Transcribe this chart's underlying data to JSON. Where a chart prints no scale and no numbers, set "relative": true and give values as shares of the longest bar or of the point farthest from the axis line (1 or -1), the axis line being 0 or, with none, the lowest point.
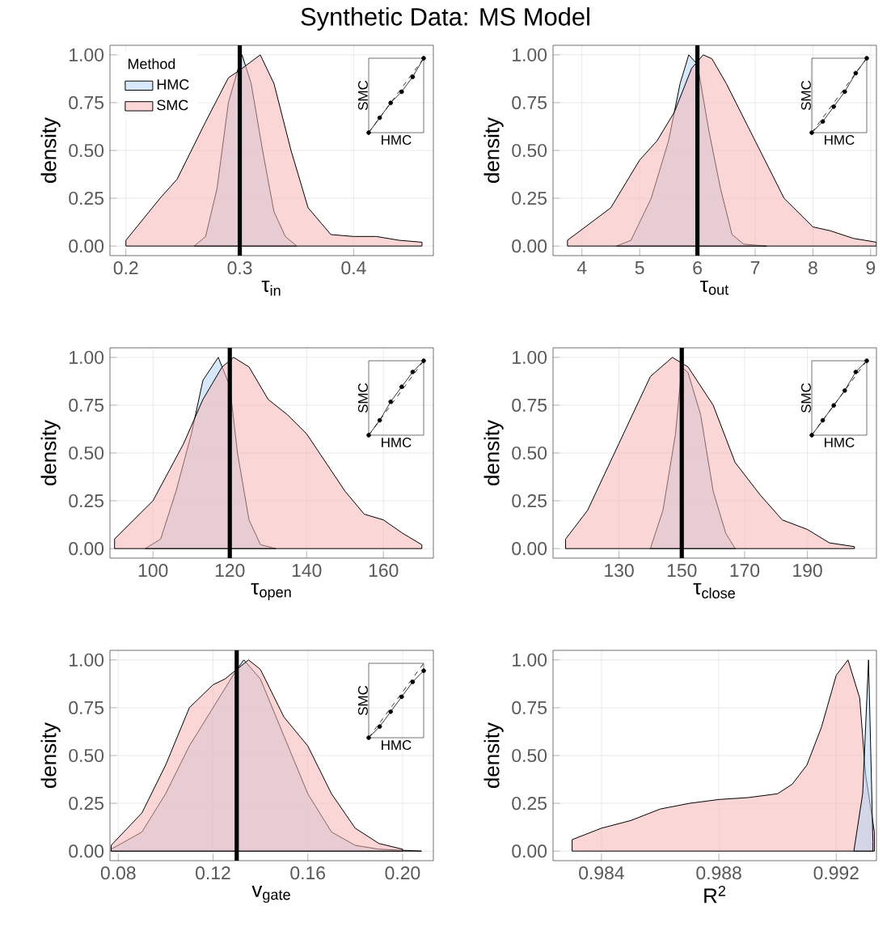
{
  "chart_data": [
    {
      "type": "area",
      "title": "Synthetic Data: MS Model",
      "xlabel": "τ$_{in}$",
      "ylabel": "density",
      "legend_title": "Method",
      "legend": "top left",
      "grid": true,
      "xlim": [
        0.186,
        0.47
      ],
      "xticks": [
        0.2,
        0.3,
        0.4
      ],
      "ylim": [
        -0.05,
        1.05
      ],
      "yticks": [
        {
          "value": 0,
          "label": "0.00"
        },
        {
          "value": 0.25,
          "label": "0.25"
        },
        {
          "value": 0.5,
          "label": "0.50"
        },
        {
          "value": 0.75,
          "label": "0.75"
        },
        {
          "value": 1,
          "label": "1.00"
        }
      ],
      "ref_lines": [
        {
          "axis": "x",
          "value": 0.3,
          "color": "#000000"
        }
      ],
      "series": [
        {
          "name": "HMC",
          "color": "#b4d6f6",
          "x": [
            0.26,
            0.27,
            0.28,
            0.29,
            0.302,
            0.31,
            0.32,
            0.33,
            0.34,
            0.35
          ],
          "values": [
            0,
            0.05,
            0.3,
            0.75,
            1.0,
            0.85,
            0.5,
            0.18,
            0.05,
            0
          ]
        },
        {
          "name": "SMC",
          "color": "#f8b4b4",
          "x": [
            0.2,
            0.23,
            0.245,
            0.27,
            0.29,
            0.3,
            0.318,
            0.33,
            0.345,
            0.36,
            0.38,
            0.4,
            0.42,
            0.44,
            0.46
          ],
          "values": [
            0.03,
            0.25,
            0.35,
            0.65,
            0.88,
            0.92,
            1.0,
            0.85,
            0.5,
            0.2,
            0.06,
            0.05,
            0.05,
            0.03,
            0.02
          ]
        }
      ]
    },
    {
      "type": "line",
      "relative": true,
      "xlabel": "HMC",
      "ylabel": "SMC",
      "categories": [
        null,
        null,
        null,
        null,
        null,
        null
      ],
      "series": [
        {
          "color": "#000000",
          "marker": "circle",
          "values": [
            0.0,
            0.2,
            0.4,
            0.55,
            0.75,
            1.0
          ]
        },
        {
          "color": "#000000",
          "line_style": "dashed",
          "values": [
            0.0,
            0.2,
            0.4,
            0.6,
            0.8,
            1.0
          ]
        }
      ]
    },
    {
      "type": "area",
      "xlabel": "τ$_{out}$",
      "ylabel": "density",
      "grid": true,
      "xlim": [
        3.5,
        9.1
      ],
      "xticks": [
        4,
        5,
        6,
        7,
        8,
        9
      ],
      "ylim": [
        -0.05,
        1.05
      ],
      "yticks": [
        {
          "value": 0,
          "label": "0.00"
        },
        {
          "value": 0.25,
          "label": "0.25"
        },
        {
          "value": 0.5,
          "label": "0.50"
        },
        {
          "value": 0.75,
          "label": "0.75"
        },
        {
          "value": 1,
          "label": "1.00"
        }
      ],
      "ref_lines": [
        {
          "axis": "x",
          "value": 6,
          "color": "#000000"
        }
      ],
      "series": [
        {
          "color": "#b4d6f6",
          "x": [
            4.6,
            4.85,
            5.2,
            5.5,
            5.7,
            5.85,
            6.0,
            6.2,
            6.4,
            6.6,
            6.8,
            7.2
          ],
          "values": [
            0,
            0.03,
            0.25,
            0.55,
            0.85,
            1.0,
            0.95,
            0.6,
            0.3,
            0.06,
            0.01,
            0
          ]
        },
        {
          "color": "#f8b4b4",
          "x": [
            3.75,
            4.5,
            5,
            5.3,
            5.6,
            5.9,
            6.1,
            6.25,
            6.5,
            7,
            7.5,
            8,
            8.3,
            8.7,
            9.1
          ],
          "values": [
            0.03,
            0.2,
            0.45,
            0.55,
            0.7,
            0.93,
            1.0,
            0.98,
            0.85,
            0.55,
            0.25,
            0.1,
            0.08,
            0.04,
            0.02
          ]
        }
      ]
    },
    {
      "type": "line",
      "relative": true,
      "xlabel": "HMC",
      "ylabel": "SMC",
      "categories": [
        null,
        null,
        null,
        null,
        null,
        null
      ],
      "series": [
        {
          "color": "#000000",
          "marker": "circle",
          "values": [
            0.0,
            0.15,
            0.35,
            0.55,
            0.8,
            1.0
          ]
        },
        {
          "color": "#000000",
          "line_style": "dashed",
          "values": [
            0.0,
            0.2,
            0.4,
            0.6,
            0.8,
            1.0
          ]
        }
      ]
    },
    {
      "type": "area",
      "xlabel": "τ$_{open}$",
      "ylabel": "density",
      "grid": true,
      "xlim": [
        88.8,
        173
      ],
      "xticks": [
        100,
        120,
        140,
        160
      ],
      "ylim": [
        -0.05,
        1.05
      ],
      "yticks": [
        {
          "value": 0,
          "label": "0.00"
        },
        {
          "value": 0.25,
          "label": "0.25"
        },
        {
          "value": 0.5,
          "label": "0.50"
        },
        {
          "value": 0.75,
          "label": "0.75"
        },
        {
          "value": 1,
          "label": "1.00"
        }
      ],
      "ref_lines": [
        {
          "axis": "x",
          "value": 120,
          "color": "#000000"
        }
      ],
      "series": [
        {
          "color": "#b4d6f6",
          "x": [
            98,
            102,
            106,
            110,
            113,
            117,
            120,
            122,
            125,
            128,
            132
          ],
          "values": [
            0,
            0.05,
            0.3,
            0.6,
            0.88,
            1.0,
            0.85,
            0.5,
            0.15,
            0.02,
            0
          ]
        },
        {
          "color": "#f8b4b4",
          "x": [
            90,
            100,
            108,
            113,
            118,
            121,
            125,
            130,
            135,
            140,
            145,
            150,
            155,
            160,
            165,
            170
          ],
          "values": [
            0.05,
            0.25,
            0.55,
            0.78,
            0.95,
            1.0,
            0.95,
            0.78,
            0.7,
            0.6,
            0.45,
            0.3,
            0.18,
            0.15,
            0.08,
            0.02
          ]
        }
      ]
    },
    {
      "type": "line",
      "relative": true,
      "xlabel": "HMC",
      "ylabel": "SMC",
      "categories": [
        null,
        null,
        null,
        null,
        null,
        null
      ],
      "series": [
        {
          "color": "#000000",
          "marker": "circle",
          "values": [
            0.0,
            0.2,
            0.45,
            0.65,
            0.85,
            1.0
          ]
        },
        {
          "color": "#000000",
          "line_style": "dashed",
          "values": [
            0.0,
            0.2,
            0.4,
            0.6,
            0.8,
            1.0
          ]
        }
      ]
    },
    {
      "type": "area",
      "xlabel": "τ$_{close}$",
      "ylabel": "density",
      "grid": true,
      "xlim": [
        109,
        212
      ],
      "xticks": [
        130,
        150,
        170,
        190
      ],
      "ylim": [
        -0.05,
        1.05
      ],
      "yticks": [
        {
          "value": 0,
          "label": "0.00"
        },
        {
          "value": 0.25,
          "label": "0.25"
        },
        {
          "value": 0.5,
          "label": "0.50"
        },
        {
          "value": 0.75,
          "label": "0.75"
        },
        {
          "value": 1,
          "label": "1.00"
        }
      ],
      "ref_lines": [
        {
          "axis": "x",
          "value": 150,
          "color": "#000000"
        }
      ],
      "series": [
        {
          "color": "#b4d6f6",
          "x": [
            140,
            144,
            148,
            150,
            152,
            156,
            160,
            164,
            167
          ],
          "values": [
            0,
            0.2,
            0.6,
            0.95,
            0.92,
            0.7,
            0.3,
            0.08,
            0
          ]
        },
        {
          "color": "#f8b4b4",
          "x": [
            113,
            120,
            130,
            140,
            147,
            152,
            160,
            167,
            175,
            182,
            190,
            197,
            205
          ],
          "values": [
            0.05,
            0.2,
            0.55,
            0.9,
            1.0,
            0.95,
            0.75,
            0.45,
            0.28,
            0.15,
            0.1,
            0.03,
            0.01
          ]
        }
      ]
    },
    {
      "type": "line",
      "relative": true,
      "xlabel": "HMC",
      "ylabel": "SMC",
      "categories": [
        null,
        null,
        null,
        null,
        null,
        null
      ],
      "series": [
        {
          "color": "#000000",
          "marker": "circle",
          "values": [
            0.0,
            0.2,
            0.4,
            0.6,
            0.85,
            1.0
          ]
        },
        {
          "color": "#000000",
          "line_style": "dashed",
          "values": [
            0.0,
            0.2,
            0.4,
            0.6,
            0.8,
            1.0
          ]
        }
      ]
    },
    {
      "type": "area",
      "xlabel": "v$_{gate}$",
      "ylabel": "density",
      "grid": true,
      "xlim": [
        0.0765,
        0.213
      ],
      "xticks": [
        {
          "value": 0.08,
          "label": "0.08"
        },
        {
          "value": 0.12,
          "label": "0.12"
        },
        {
          "value": 0.16,
          "label": "0.16"
        },
        {
          "value": 0.2,
          "label": "0.20"
        }
      ],
      "ylim": [
        -0.05,
        1.05
      ],
      "yticks": [
        {
          "value": 0,
          "label": "0.00"
        },
        {
          "value": 0.25,
          "label": "0.25"
        },
        {
          "value": 0.5,
          "label": "0.50"
        },
        {
          "value": 0.75,
          "label": "0.75"
        },
        {
          "value": 1,
          "label": "1.00"
        }
      ],
      "ref_lines": [
        {
          "axis": "x",
          "value": 0.13,
          "color": "#000000"
        }
      ],
      "series": [
        {
          "color": "#b4d6f6",
          "x": [
            0.077,
            0.09,
            0.1,
            0.11,
            0.12,
            0.13,
            0.133,
            0.14,
            0.15,
            0.16,
            0.17,
            0.18,
            0.19,
            0.208
          ],
          "values": [
            0.01,
            0.1,
            0.3,
            0.55,
            0.75,
            0.95,
            1.0,
            0.9,
            0.6,
            0.3,
            0.1,
            0.03,
            0.01,
            0
          ]
        },
        {
          "color": "#f8b4b4",
          "x": [
            0.077,
            0.09,
            0.1,
            0.11,
            0.12,
            0.125,
            0.13,
            0.135,
            0.14,
            0.15,
            0.16,
            0.17,
            0.18,
            0.19,
            0.2
          ],
          "values": [
            0.03,
            0.2,
            0.45,
            0.75,
            0.87,
            0.9,
            0.95,
            1.0,
            0.95,
            0.7,
            0.55,
            0.3,
            0.12,
            0.04,
            0.01
          ]
        }
      ]
    },
    {
      "type": "line",
      "relative": true,
      "xlabel": "HMC",
      "ylabel": "SMC",
      "categories": [
        null,
        null,
        null,
        null,
        null,
        null
      ],
      "series": [
        {
          "color": "#000000",
          "marker": "circle",
          "values": [
            0.0,
            0.15,
            0.35,
            0.55,
            0.75,
            0.9
          ]
        },
        {
          "color": "#000000",
          "line_style": "dashed",
          "values": [
            0.0,
            0.2,
            0.4,
            0.6,
            0.8,
            1.0
          ]
        }
      ]
    },
    {
      "type": "area",
      "xlabel": "R$^{2}$",
      "ylabel": "density",
      "grid": true,
      "xlim": [
        0.98235,
        0.99337
      ],
      "xticks": [
        0.984,
        0.988,
        0.992
      ],
      "ylim": [
        -0.05,
        1.05
      ],
      "yticks": [
        {
          "value": 0,
          "label": "0.00"
        },
        {
          "value": 0.25,
          "label": "0.25"
        },
        {
          "value": 0.5,
          "label": "0.50"
        },
        {
          "value": 0.75,
          "label": "0.75"
        },
        {
          "value": 1,
          "label": "1.00"
        }
      ],
      "series": [
        {
          "color": "#f8b4b4",
          "x": [
            0.983,
            0.984,
            0.985,
            0.986,
            0.987,
            0.988,
            0.989,
            0.99,
            0.9905,
            0.991,
            0.9915,
            0.992,
            0.9924,
            0.9928,
            0.993,
            0.9933
          ],
          "values": [
            0.06,
            0.12,
            0.16,
            0.22,
            0.25,
            0.27,
            0.28,
            0.3,
            0.35,
            0.45,
            0.65,
            0.92,
            1.0,
            0.8,
            0.4,
            0.1
          ]
        },
        {
          "color": "#b4d6f6",
          "x": [
            0.9926,
            0.9929,
            0.9931,
            0.99325
          ],
          "values": [
            0,
            0.3,
            1.0,
            0.05
          ]
        }
      ]
    }
  ]
}
